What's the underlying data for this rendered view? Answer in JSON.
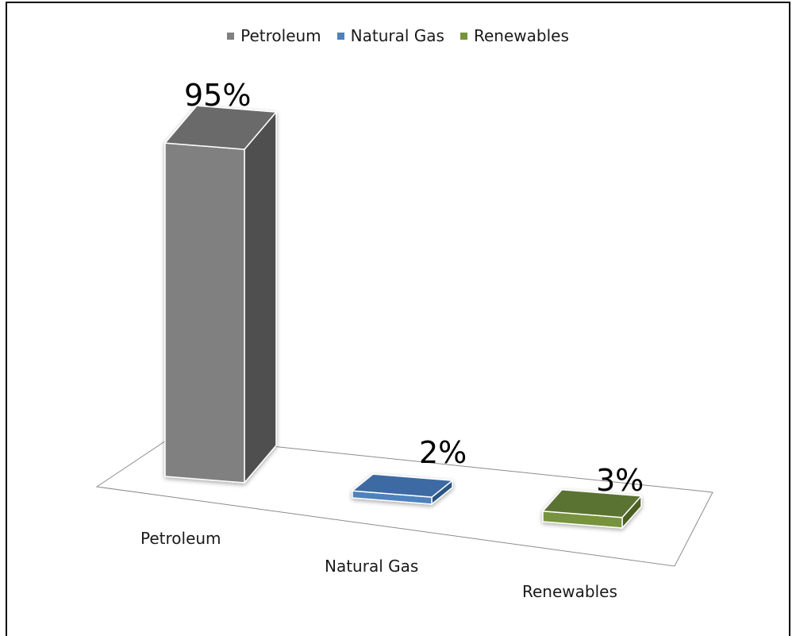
{
  "chart_data": {
    "type": "bar",
    "title": "",
    "categories": [
      "Petroleum",
      "Natural Gas",
      "Renewables"
    ],
    "values": [
      95,
      2,
      3
    ],
    "value_labels": [
      "95%",
      "2%",
      "3%"
    ],
    "unit": "%",
    "ylim": [
      0,
      100
    ],
    "grid": false,
    "legend_placement": "top-center",
    "three_d": true,
    "colors": {
      "Petroleum": {
        "front": "#808080",
        "side": "#505050",
        "top": "#6a6a6a"
      },
      "Natural Gas": {
        "front": "#4f81bd",
        "side": "#2b5585",
        "top": "#3d6aa3"
      },
      "Renewables": {
        "front": "#77933c",
        "side": "#4b6022",
        "top": "#5a7330"
      }
    }
  },
  "legend": [
    {
      "label": "Petroleum",
      "color": "#808080"
    },
    {
      "label": "Natural Gas",
      "color": "#4f81bd"
    },
    {
      "label": "Renewables",
      "color": "#77933c"
    }
  ]
}
